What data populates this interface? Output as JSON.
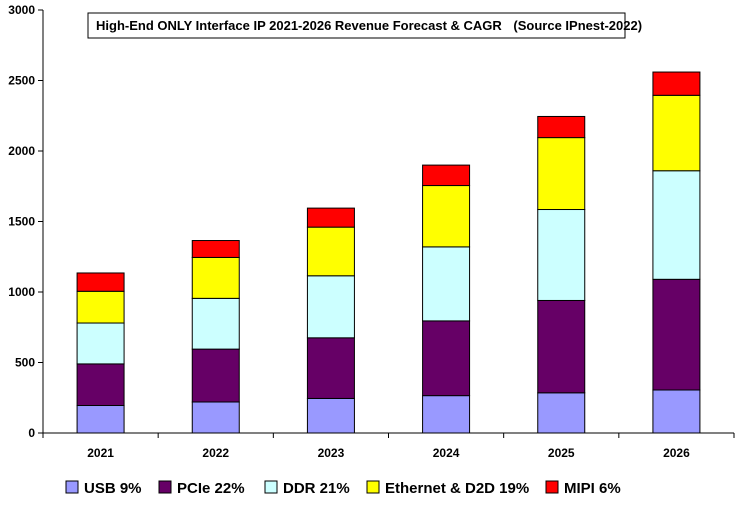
{
  "chart_data": {
    "type": "bar",
    "stacked": true,
    "title": "High-End ONLY Interface IP 2021-2026 Revenue Forecast & CAGR",
    "source": "(Source IPnest-2022)",
    "categories": [
      "2021",
      "2022",
      "2023",
      "2024",
      "2025",
      "2026"
    ],
    "ylim": [
      0,
      3000
    ],
    "yticks": [
      0,
      500,
      1000,
      1500,
      2000,
      2500,
      3000
    ],
    "legend_position": "bottom",
    "series": [
      {
        "name": "USB",
        "legend_label": "USB 9%",
        "color": "#9999ff",
        "values": [
          195,
          220,
          245,
          265,
          285,
          305
        ]
      },
      {
        "name": "PCIe",
        "legend_label": "PCIe 22%",
        "color": "#660066",
        "values": [
          295,
          375,
          430,
          530,
          655,
          785
        ]
      },
      {
        "name": "DDR",
        "legend_label": "DDR 21%",
        "color": "#ccffff",
        "values": [
          290,
          360,
          440,
          525,
          645,
          770
        ]
      },
      {
        "name": "Ethernet & D2D",
        "legend_label": "Ethernet & D2D 19%",
        "color": "#ffff00",
        "values": [
          225,
          290,
          345,
          435,
          510,
          535
        ]
      },
      {
        "name": "MIPI",
        "legend_label": "MIPI 6%",
        "color": "#ff0000",
        "values": [
          130,
          120,
          135,
          145,
          150,
          165
        ]
      }
    ]
  }
}
